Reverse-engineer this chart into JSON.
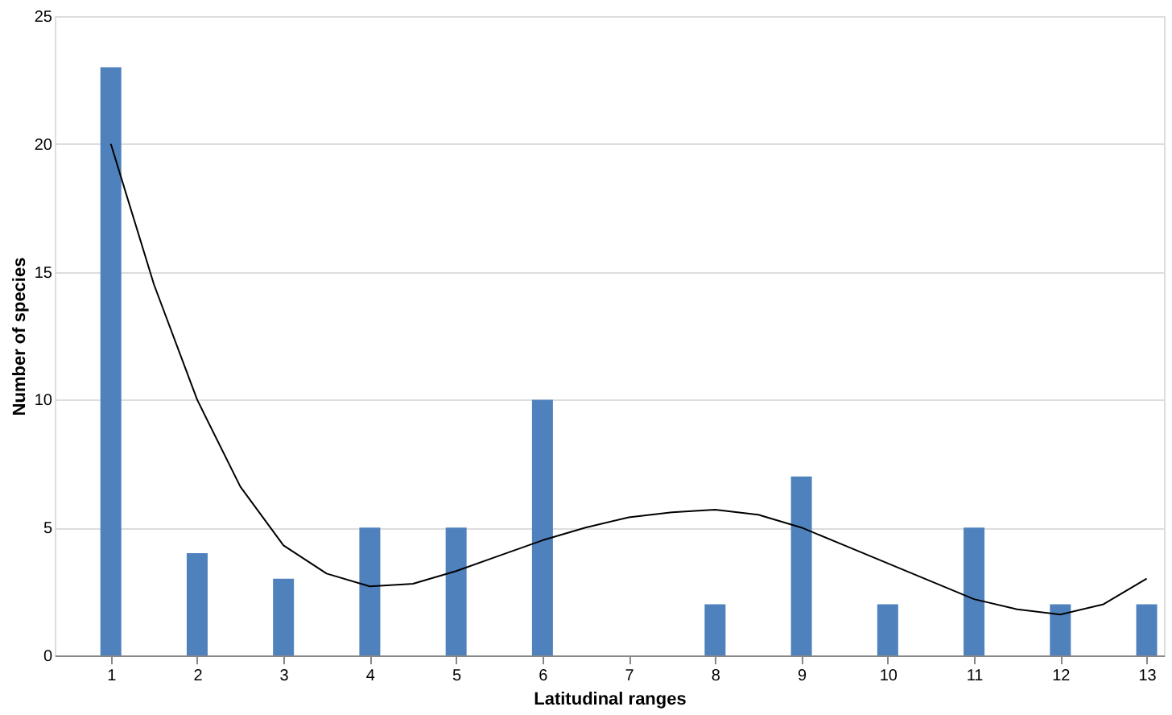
{
  "chart_data": {
    "type": "bar",
    "xlabel": "Latitudinal ranges",
    "ylabel": "Number of species",
    "x": [
      1,
      2,
      3,
      4,
      5,
      6,
      7,
      8,
      9,
      10,
      11,
      12,
      13
    ],
    "series": [
      {
        "color": "#4f81bd",
        "values": [
          23,
          4,
          3,
          5,
          5,
          10,
          0,
          2,
          7,
          2,
          5,
          2,
          2
        ]
      },
      {
        "type": "line",
        "color": "#000000",
        "x": [
          1,
          1.5,
          2,
          2.5,
          3,
          3.5,
          4,
          4.5,
          5,
          5.5,
          6,
          6.5,
          7,
          7.5,
          8,
          8.5,
          9,
          9.5,
          10,
          10.5,
          11,
          11.5,
          12,
          12.5,
          13
        ],
        "values": [
          20,
          14.5,
          10,
          6.6,
          4.3,
          3.2,
          2.7,
          2.8,
          3.3,
          3.9,
          4.5,
          5,
          5.4,
          5.6,
          5.7,
          5.5,
          5,
          4.3,
          3.6,
          2.9,
          2.2,
          1.8,
          1.6,
          2,
          3
        ]
      }
    ],
    "xlim": [
      0.35,
      13.2
    ],
    "xticks": [
      1,
      2,
      3,
      4,
      5,
      6,
      7,
      8,
      9,
      10,
      11,
      12,
      13
    ],
    "ylim": [
      0,
      25
    ],
    "yticks": [
      0,
      5,
      10,
      15,
      20,
      25
    ],
    "grid": "y",
    "marker": "none",
    "line_style": "solid"
  }
}
